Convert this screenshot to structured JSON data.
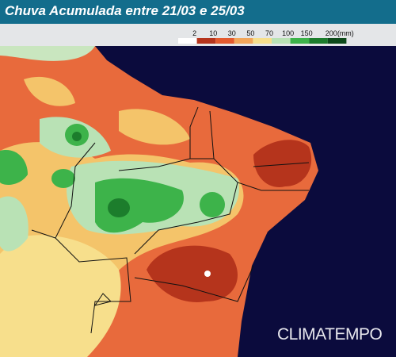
{
  "header": {
    "title": "Chuva Acumulada entre 21/03 e 25/03"
  },
  "legend": {
    "labels": [
      "2",
      "10",
      "30",
      "50",
      "70",
      "100",
      "150",
      "200(mm)"
    ],
    "colors": [
      "#ffffff",
      "#b5341c",
      "#e35a2e",
      "#f2a65a",
      "#f7df8c",
      "#b9e2b5",
      "#3db34a",
      "#1c7d2c",
      "#0d4a1a"
    ]
  },
  "watermark": "CLIMATEMPO"
}
